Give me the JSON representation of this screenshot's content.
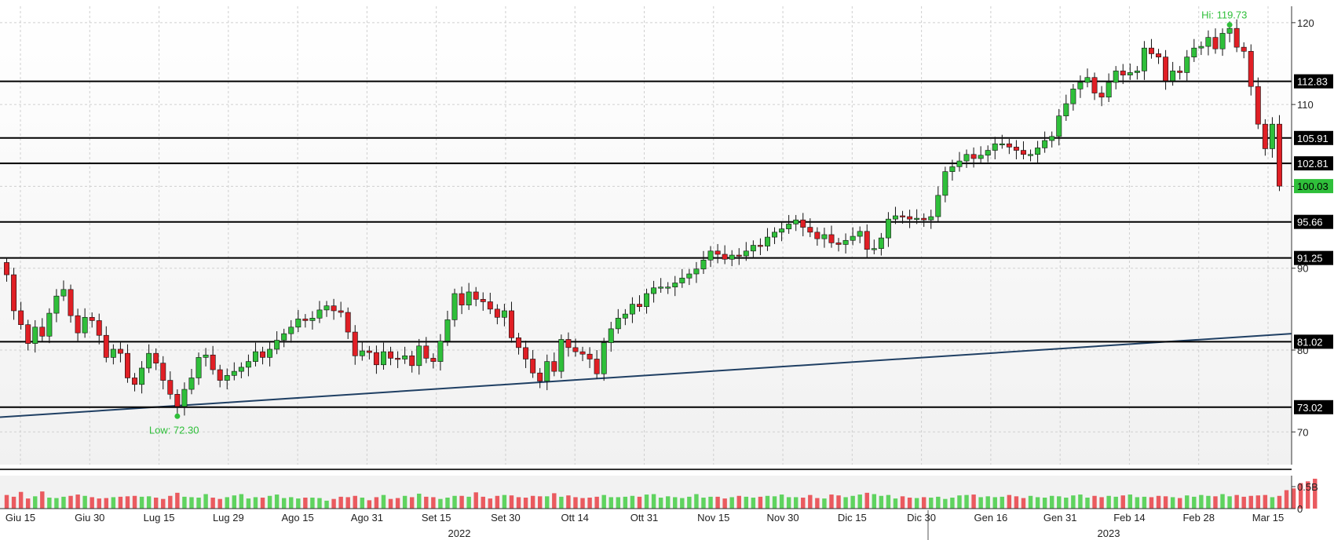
{
  "chart_data": {
    "type": "candlestick",
    "price_axis": {
      "ylim": [
        66,
        122
      ],
      "ticks": [
        70,
        80,
        90,
        100,
        110,
        120
      ],
      "grid": true
    },
    "volume_axis": {
      "ylim": [
        0,
        0.75
      ],
      "ticks": [
        {
          "value": 0,
          "label": "0"
        },
        {
          "value": 0.5,
          "label": "0.5B"
        }
      ]
    },
    "x_tick_labels": [
      "Giu 15",
      "Giu 30",
      "Lug 15",
      "Lug 29",
      "Ago 15",
      "Ago 31",
      "Set 15",
      "Set 30",
      "Ott 14",
      "Ott 31",
      "Nov 15",
      "Nov 30",
      "Dic 15",
      "Dic 30",
      "Gen 16",
      "Gen 31",
      "Feb 14",
      "Feb 28",
      "Mar 15"
    ],
    "year_labels": [
      "2022",
      "2023"
    ],
    "horizontal_levels": [
      {
        "value": 112.83,
        "label": "112.83"
      },
      {
        "value": 105.91,
        "label": "105.91"
      },
      {
        "value": 102.81,
        "label": "102.81"
      },
      {
        "value": 95.66,
        "label": "95.66"
      },
      {
        "value": 91.25,
        "label": "91.25"
      },
      {
        "value": 81.02,
        "label": "81.02"
      },
      {
        "value": 73.02,
        "label": "73.02"
      }
    ],
    "last_price": {
      "value": 100.03,
      "label": "100.03"
    },
    "trendline": [
      {
        "date": "2022-06-10",
        "value": 71.8
      },
      {
        "date": "2023-03-17",
        "value": 82.0
      }
    ],
    "annotations": [
      {
        "text": "Hi: 119.73",
        "value": 119.73
      },
      {
        "text": "Low: 72.30",
        "value": 72.3
      }
    ],
    "closes": [
      89.2,
      84.8,
      83.1,
      80.8,
      82.8,
      81.7,
      84.5,
      86.6,
      87.4,
      84.2,
      82.1,
      84.0,
      83.6,
      81.8,
      79.1,
      80.1,
      79.6,
      76.6,
      75.8,
      77.8,
      79.6,
      78.4,
      76.3,
      74.6,
      73.1,
      75.2,
      76.6,
      79.1,
      79.4,
      77.6,
      76.3,
      76.9,
      77.4,
      77.9,
      78.6,
      79.8,
      79.1,
      80.1,
      81.2,
      82.0,
      82.8,
      83.8,
      83.6,
      83.9,
      84.9,
      85.4,
      84.8,
      84.6,
      82.2,
      79.3,
      79.9,
      79.7,
      78.2,
      79.8,
      79.0,
      78.9,
      79.3,
      78.1,
      80.5,
      79.0,
      78.6,
      81.1,
      83.7,
      86.9,
      85.5,
      87.1,
      86.2,
      85.9,
      85.0,
      84.0,
      84.8,
      81.5,
      80.3,
      78.9,
      77.2,
      76.2,
      78.6,
      77.4,
      81.3,
      80.3,
      79.8,
      79.5,
      78.9,
      77.1,
      80.9,
      82.6,
      83.9,
      84.4,
      85.6,
      85.3,
      86.9,
      87.6,
      87.7,
      87.7,
      88.2,
      88.8,
      89.3,
      89.9,
      91.0,
      92.1,
      91.7,
      91.1,
      91.6,
      91.5,
      92.1,
      92.8,
      92.7,
      93.8,
      94.4,
      94.8,
      95.4,
      95.9,
      95.0,
      94.4,
      93.6,
      94.1,
      93.1,
      92.9,
      93.4,
      93.9,
      94.5,
      92.3,
      92.4,
      93.7,
      96.0,
      96.4,
      96.3,
      96.0,
      96.1,
      95.9,
      96.3,
      98.9,
      101.8,
      102.4,
      103.1,
      103.9,
      103.4,
      103.8,
      104.4,
      105.2,
      105.2,
      104.8,
      104.4,
      103.9,
      103.9,
      104.7,
      105.6,
      106.1,
      108.6,
      110.1,
      111.9,
      112.7,
      113.3,
      111.4,
      110.9,
      112.7,
      114.1,
      113.6,
      113.9,
      114.1,
      116.9,
      116.2,
      115.8,
      112.9,
      114.1,
      113.9,
      115.8,
      116.9,
      117.1,
      118.2,
      116.8,
      118.7,
      119.3,
      117.0,
      116.5,
      112.2,
      107.6,
      104.6,
      107.6,
      100.03
    ],
    "volumes": [
      0.31,
      0.27,
      0.38,
      0.23,
      0.28,
      0.39,
      0.25,
      0.24,
      0.27,
      0.29,
      0.32,
      0.29,
      0.26,
      0.23,
      0.24,
      0.26,
      0.27,
      0.28,
      0.29,
      0.27,
      0.28,
      0.25,
      0.22,
      0.29,
      0.36,
      0.27,
      0.26,
      0.25,
      0.33,
      0.25,
      0.22,
      0.26,
      0.3,
      0.33,
      0.23,
      0.26,
      0.25,
      0.29,
      0.32,
      0.24,
      0.26,
      0.23,
      0.25,
      0.25,
      0.24,
      0.18,
      0.22,
      0.27,
      0.26,
      0.29,
      0.25,
      0.19,
      0.26,
      0.31,
      0.22,
      0.24,
      0.29,
      0.26,
      0.34,
      0.27,
      0.26,
      0.22,
      0.25,
      0.29,
      0.29,
      0.27,
      0.37,
      0.27,
      0.23,
      0.29,
      0.31,
      0.3,
      0.26,
      0.25,
      0.29,
      0.28,
      0.28,
      0.35,
      0.27,
      0.3,
      0.26,
      0.24,
      0.25,
      0.27,
      0.31,
      0.26,
      0.26,
      0.27,
      0.29,
      0.27,
      0.32,
      0.33,
      0.25,
      0.28,
      0.26,
      0.24,
      0.27,
      0.33,
      0.25,
      0.27,
      0.27,
      0.23,
      0.26,
      0.29,
      0.27,
      0.25,
      0.27,
      0.29,
      0.28,
      0.32,
      0.26,
      0.26,
      0.25,
      0.31,
      0.24,
      0.23,
      0.32,
      0.3,
      0.26,
      0.29,
      0.32,
      0.36,
      0.33,
      0.29,
      0.31,
      0.23,
      0.28,
      0.25,
      0.24,
      0.26,
      0.25,
      0.27,
      0.22,
      0.25,
      0.3,
      0.31,
      0.32,
      0.26,
      0.28,
      0.26,
      0.27,
      0.31,
      0.28,
      0.24,
      0.29,
      0.26,
      0.25,
      0.29,
      0.28,
      0.25,
      0.3,
      0.32,
      0.25,
      0.29,
      0.26,
      0.29,
      0.27,
      0.3,
      0.32,
      0.26,
      0.27,
      0.26,
      0.29,
      0.28,
      0.26,
      0.24,
      0.3,
      0.27,
      0.31,
      0.29,
      0.28,
      0.33,
      0.28,
      0.31,
      0.27,
      0.29,
      0.3,
      0.31,
      0.26,
      0.29,
      0.42,
      0.46,
      0.58,
      0.62,
      0.68
    ]
  }
}
